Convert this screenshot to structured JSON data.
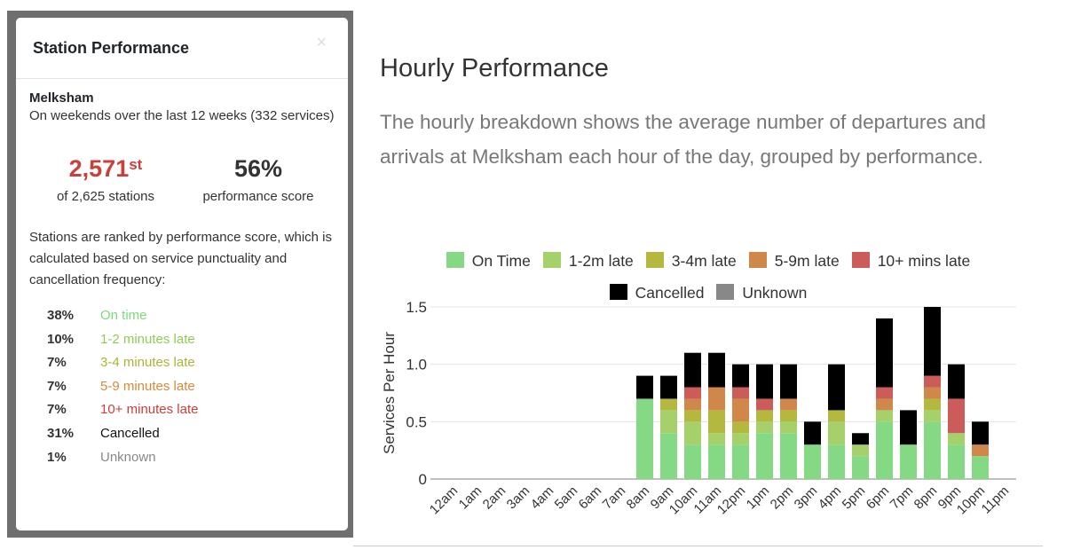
{
  "modal": {
    "title": "Station Performance",
    "close": "×",
    "station": "Melksham",
    "subtitle": "On weekends over the last 12 weeks (332 services)",
    "rank": "2,571",
    "rank_suffix": "st",
    "rank_label": "of 2,625 stations",
    "score": "56%",
    "score_label": "performance score",
    "description": "Stations are ranked by performance score, which is calculated based on service punctuality and cancellation frequency:",
    "breakdown": [
      {
        "pct": "38%",
        "label": "On time",
        "color": "#7dd87d"
      },
      {
        "pct": "10%",
        "label": "1-2 minutes late",
        "color": "#8fcc55"
      },
      {
        "pct": "7%",
        "label": "3-4 minutes late",
        "color": "#aab535"
      },
      {
        "pct": "7%",
        "label": "5-9 minutes late",
        "color": "#d9883e"
      },
      {
        "pct": "7%",
        "label": "10+ minutes late",
        "color": "#c9403a"
      },
      {
        "pct": "31%",
        "label": "Cancelled",
        "color": "#111111"
      },
      {
        "pct": "1%",
        "label": "Unknown",
        "color": "#888888"
      }
    ]
  },
  "main": {
    "title": "Hourly Performance",
    "description": "The hourly breakdown shows the average number of departures and arrivals at Melksham each hour of the day, grouped by performance."
  },
  "chart_data": {
    "type": "bar",
    "stacked": true,
    "ylabel": "Services Per Hour",
    "ylim": [
      0,
      1.5
    ],
    "yticks": [
      "0",
      "0.5",
      "1.0",
      "1.5"
    ],
    "legend_position": "top",
    "categories": [
      "12am",
      "1am",
      "2am",
      "3am",
      "4am",
      "5am",
      "6am",
      "7am",
      "8am",
      "9am",
      "10am",
      "11am",
      "12pm",
      "1pm",
      "2pm",
      "3pm",
      "4pm",
      "5pm",
      "6pm",
      "7pm",
      "8pm",
      "9pm",
      "10pm",
      "11pm"
    ],
    "series": [
      {
        "name": "On Time",
        "color": "#85d985",
        "values": [
          0,
          0,
          0,
          0,
          0,
          0,
          0,
          0,
          0.7,
          0.4,
          0.3,
          0.3,
          0.3,
          0.4,
          0.4,
          0.3,
          0.3,
          0.2,
          0.5,
          0.3,
          0.5,
          0.3,
          0.2,
          0
        ]
      },
      {
        "name": "1-2m late",
        "color": "#a6d16a",
        "values": [
          0,
          0,
          0,
          0,
          0,
          0,
          0,
          0,
          0,
          0.2,
          0.2,
          0.1,
          0.1,
          0.1,
          0.1,
          0,
          0.2,
          0.1,
          0.1,
          0,
          0.1,
          0.1,
          0,
          0
        ]
      },
      {
        "name": "3-4m late",
        "color": "#b5b83e",
        "values": [
          0,
          0,
          0,
          0,
          0,
          0,
          0,
          0,
          0,
          0.1,
          0.1,
          0.2,
          0.1,
          0.1,
          0.1,
          0,
          0.1,
          0,
          0,
          0,
          0.1,
          0,
          0,
          0
        ]
      },
      {
        "name": "5-9m late",
        "color": "#d0884a",
        "values": [
          0,
          0,
          0,
          0,
          0,
          0,
          0,
          0,
          0,
          0,
          0.1,
          0.2,
          0.2,
          0,
          0.1,
          0,
          0,
          0,
          0.1,
          0,
          0.1,
          0,
          0.1,
          0
        ]
      },
      {
        "name": "10+ mins late",
        "color": "#cc5c5a",
        "values": [
          0,
          0,
          0,
          0,
          0,
          0,
          0,
          0,
          0,
          0,
          0.1,
          0,
          0.1,
          0.1,
          0,
          0,
          0,
          0,
          0.1,
          0,
          0.1,
          0.3,
          0,
          0
        ]
      },
      {
        "name": "Cancelled",
        "color": "#000000",
        "values": [
          0,
          0,
          0,
          0,
          0,
          0,
          0,
          0,
          0.2,
          0.2,
          0.3,
          0.3,
          0.2,
          0.3,
          0.3,
          0.2,
          0.4,
          0.1,
          0.6,
          0.3,
          0.6,
          0.3,
          0.2,
          0
        ]
      },
      {
        "name": "Unknown",
        "color": "#888888",
        "values": [
          0,
          0,
          0,
          0,
          0,
          0,
          0,
          0,
          0,
          0,
          0,
          0,
          0,
          0,
          0,
          0,
          0,
          0,
          0,
          0,
          0,
          0,
          0,
          0
        ]
      }
    ]
  }
}
